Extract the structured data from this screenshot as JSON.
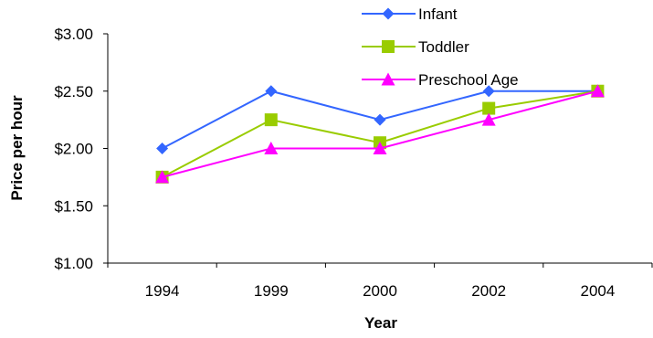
{
  "chart_data": {
    "type": "line",
    "categories": [
      "1994",
      "1999",
      "2000",
      "2002",
      "2004"
    ],
    "series": [
      {
        "name": "Infant",
        "values": [
          2.0,
          2.5,
          2.25,
          2.5,
          2.5
        ],
        "color": "#3366FF",
        "marker": "diamond"
      },
      {
        "name": "Toddler",
        "values": [
          1.75,
          2.25,
          2.05,
          2.35,
          2.5
        ],
        "color": "#99CC00",
        "marker": "square"
      },
      {
        "name": "Preschool Age",
        "values": [
          1.75,
          2.0,
          2.0,
          2.25,
          2.5
        ],
        "color": "#FF00FF",
        "marker": "triangle"
      }
    ],
    "title": "",
    "xlabel": "Year",
    "ylabel": "Price per hour",
    "ylim": [
      1.0,
      3.0
    ],
    "yticks": [
      1.0,
      1.5,
      2.0,
      2.5,
      3.0
    ],
    "ytick_labels": [
      "$1.00",
      "$1.50",
      "$2.00",
      "$2.50",
      "$3.00"
    ],
    "grid": false,
    "legend_position": "top-right"
  }
}
